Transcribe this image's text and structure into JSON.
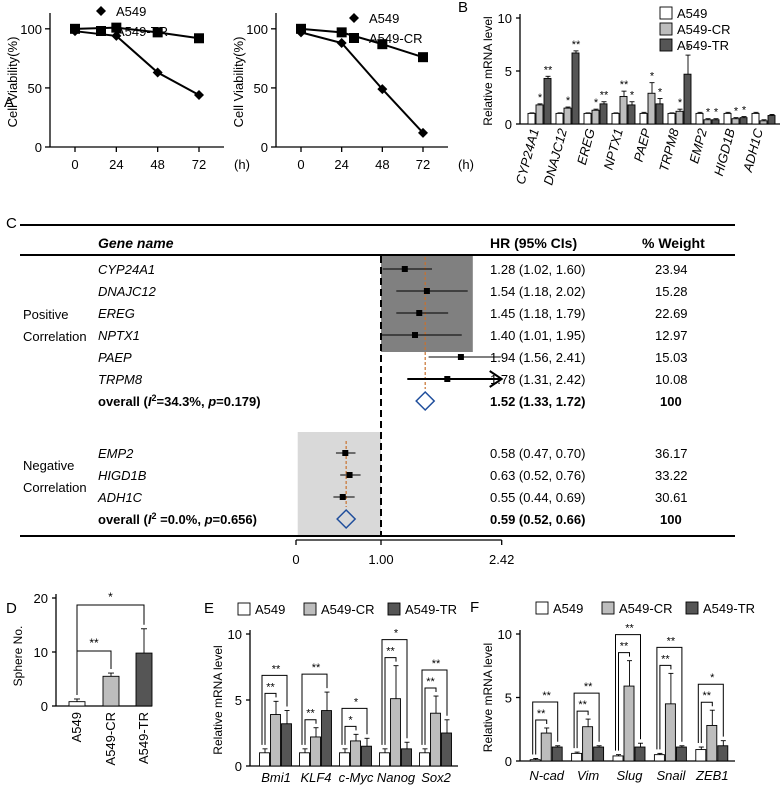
{
  "chart_data": [
    {
      "panel": "A",
      "type": "line",
      "ylabel": "Cell Viability(%)",
      "xunit": "(h)",
      "x": [
        0,
        24,
        48,
        72
      ],
      "xticks": [
        "0",
        "24",
        "48",
        "72"
      ],
      "yticks": [
        "0",
        "50",
        "100"
      ],
      "ylim": [
        0,
        110
      ],
      "series": [
        {
          "name": "A549",
          "marker": "diamond",
          "values": [
            98,
            94,
            63,
            44
          ]
        },
        {
          "name": "A549-TR",
          "marker": "square",
          "values": [
            100,
            101,
            97,
            92
          ]
        }
      ]
    },
    {
      "panel": "",
      "type": "line",
      "ylabel": "Cell Viability(%)",
      "xunit": "(h)",
      "x": [
        0,
        24,
        48,
        72
      ],
      "xticks": [
        "0",
        "24",
        "48",
        "72"
      ],
      "yticks": [
        "0",
        "50",
        "100"
      ],
      "ylim": [
        0,
        110
      ],
      "series": [
        {
          "name": "A549",
          "marker": "diamond",
          "values": [
            97,
            88,
            49,
            12
          ]
        },
        {
          "name": "A549-CR",
          "marker": "square",
          "values": [
            100,
            97,
            87,
            76
          ]
        }
      ]
    },
    {
      "panel": "B",
      "type": "bar",
      "ylabel": "Relative mRNA level",
      "yticks": [
        "0",
        "5",
        "10"
      ],
      "ylim": [
        0,
        10
      ],
      "legend": [
        "A549",
        "A549-CR",
        "A549-TR"
      ],
      "categories": [
        "CYP24A1",
        "DNAJC12",
        "EREG",
        "NPTX1",
        "PAEP",
        "TRPM8",
        "EMP2",
        "HIGD1B",
        "ADH1C"
      ],
      "series": [
        {
          "name": "A549",
          "values": [
            1,
            1,
            1,
            1,
            1,
            1,
            1,
            1,
            1
          ],
          "errors": [
            0.05,
            0.05,
            0.05,
            0.05,
            0.1,
            0.05,
            0.1,
            0.1,
            0.1
          ]
        },
        {
          "name": "A549-CR",
          "values": [
            1.8,
            1.5,
            1.3,
            2.6,
            2.9,
            1.2,
            0.4,
            0.5,
            0.3
          ],
          "errors": [
            0.1,
            0.1,
            0.1,
            0.5,
            1.0,
            0.2,
            0.1,
            0.1,
            0.1
          ]
        },
        {
          "name": "A549-TR",
          "values": [
            4.3,
            6.7,
            1.9,
            1.8,
            1.9,
            4.7,
            0.4,
            0.6,
            0.8
          ],
          "errors": [
            0.2,
            0.2,
            0.2,
            0.3,
            0.5,
            1.8,
            0.1,
            0.1,
            0.1
          ]
        }
      ],
      "sig": [
        [
          "*",
          "**"
        ],
        [
          "*",
          "**"
        ],
        [
          "*",
          "**"
        ],
        [
          "**",
          "*"
        ],
        [
          "*",
          "*"
        ],
        [
          "*",
          "*"
        ],
        [
          "*",
          "*"
        ],
        [
          "*",
          "*"
        ],
        [
          "",
          ""
        ]
      ]
    },
    {
      "panel": "C",
      "type": "table",
      "headers": [
        "Gene name",
        "HR (95% CIs)",
        "% Weight"
      ],
      "axis_ticks": [
        "0",
        "1.00",
        "2.42"
      ],
      "groups": [
        {
          "label_line1": "Positive",
          "label_line2": "Correlation",
          "rows": [
            {
              "gene": "CYP24A1",
              "hr": 1.28,
              "lo": 1.02,
              "hi": 1.6,
              "ci": "1.28 (1.02, 1.60)",
              "weight": "23.94"
            },
            {
              "gene": "DNAJC12",
              "hr": 1.54,
              "lo": 1.18,
              "hi": 2.02,
              "ci": "1.54 (1.18, 2.02)",
              "weight": "15.28"
            },
            {
              "gene": "EREG",
              "hr": 1.45,
              "lo": 1.18,
              "hi": 1.79,
              "ci": "1.45 (1.18, 1.79)",
              "weight": "22.69"
            },
            {
              "gene": "NPTX1",
              "hr": 1.4,
              "lo": 1.01,
              "hi": 1.95,
              "ci": "1.40 (1.01, 1.95)",
              "weight": "12.97"
            },
            {
              "gene": "PAEP",
              "hr": 1.94,
              "lo": 1.56,
              "hi": 2.41,
              "ci": "1.94 (1.56, 2.41)",
              "weight": "15.03"
            },
            {
              "gene": "TRPM8",
              "hr": 1.78,
              "lo": 1.31,
              "hi": 2.42,
              "ci": "1.78 (1.31, 2.42)",
              "weight": "10.08"
            }
          ],
          "overall": {
            "hr": 1.52,
            "lo": 1.33,
            "hi": 1.72,
            "prefix": "overall (",
            "i2": "=34.3%, ",
            "p": "=0.179)",
            "ci": "1.52 (1.33, 1.72)",
            "weight": "100"
          }
        },
        {
          "label_line1": "Negative",
          "label_line2": "Correlation",
          "rows": [
            {
              "gene": "EMP2",
              "hr": 0.58,
              "lo": 0.47,
              "hi": 0.7,
              "ci": "0.58 (0.47, 0.70)",
              "weight": "36.17"
            },
            {
              "gene": "HIGD1B",
              "hr": 0.63,
              "lo": 0.52,
              "hi": 0.76,
              "ci": "0.63 (0.52, 0.76)",
              "weight": "33.22"
            },
            {
              "gene": "ADH1C",
              "hr": 0.55,
              "lo": 0.44,
              "hi": 0.69,
              "ci": "0.55 (0.44, 0.69)",
              "weight": "30.61"
            }
          ],
          "overall": {
            "hr": 0.59,
            "lo": 0.52,
            "hi": 0.66,
            "prefix": "overall (",
            "i2": " =0.0%, ",
            "p": "=0.656)",
            "ci": "0.59 (0.52, 0.66)",
            "weight": "100"
          }
        }
      ]
    },
    {
      "panel": "D",
      "type": "bar",
      "ylabel": "Sphere No.",
      "yticks": [
        "0",
        "10",
        "20"
      ],
      "ylim": [
        0,
        20
      ],
      "categories": [
        "A549",
        "A549-CR",
        "A549-TR"
      ],
      "values": [
        0.8,
        5.5,
        9.8
      ],
      "errors": [
        0.5,
        0.6,
        4.5
      ],
      "sig": [
        {
          "a": 0,
          "b": 1,
          "label": "**"
        },
        {
          "a": 0,
          "b": 2,
          "label": "*"
        }
      ]
    },
    {
      "panel": "E",
      "type": "bar",
      "ylabel": "Relative mRNA level",
      "yticks": [
        "0",
        "5",
        "10"
      ],
      "ylim": [
        0,
        10
      ],
      "legend": [
        "A549",
        "A549-CR",
        "A549-TR"
      ],
      "categories": [
        "Bmi1",
        "KLF4",
        "c-Myc",
        "Nanog",
        "Sox2"
      ],
      "series": [
        {
          "name": "A549",
          "values": [
            1,
            1,
            1,
            1,
            1
          ],
          "errors": [
            0.3,
            0.3,
            0.3,
            0.3,
            0.3
          ]
        },
        {
          "name": "A549-CR",
          "values": [
            3.9,
            2.2,
            1.9,
            5.1,
            4.0
          ],
          "errors": [
            1.0,
            0.7,
            0.5,
            2.5,
            1.3
          ]
        },
        {
          "name": "A549-TR",
          "values": [
            3.2,
            4.2,
            1.5,
            1.3,
            2.5
          ],
          "errors": [
            1.0,
            1.4,
            0.6,
            0.5,
            1.0
          ]
        }
      ],
      "sig": [
        [
          "**",
          "**"
        ],
        [
          "**",
          "**"
        ],
        [
          "*",
          "*"
        ],
        [
          "**",
          "*"
        ],
        [
          "**",
          "**"
        ]
      ]
    },
    {
      "panel": "F",
      "type": "bar",
      "ylabel": "Relative mRNA level",
      "yticks": [
        "0",
        "5",
        "10"
      ],
      "ylim": [
        0,
        10
      ],
      "legend": [
        "A549",
        "A549-CR",
        "A549-TR"
      ],
      "categories": [
        "N-cad",
        "Vim",
        "Slug",
        "Snail",
        "ZEB1"
      ],
      "series": [
        {
          "name": "A549",
          "values": [
            0.1,
            0.6,
            0.4,
            0.5,
            0.9
          ],
          "errors": [
            0.1,
            0.1,
            0.1,
            0.1,
            0.2
          ]
        },
        {
          "name": "A549-CR",
          "values": [
            2.2,
            2.7,
            5.9,
            4.5,
            2.8
          ],
          "errors": [
            0.4,
            0.6,
            2.0,
            2.4,
            1.2
          ]
        },
        {
          "name": "A549-TR",
          "values": [
            1.1,
            1.1,
            1.1,
            1.1,
            1.2
          ],
          "errors": [
            0.1,
            0.1,
            0.3,
            0.1,
            0.4
          ]
        }
      ],
      "sig": [
        [
          "**",
          "**"
        ],
        [
          "**",
          "**"
        ],
        [
          "**",
          "**"
        ],
        [
          "**",
          "**"
        ],
        [
          "**",
          "*"
        ]
      ]
    }
  ],
  "colors": {
    "white_fill": "#ffffff",
    "light_gray": "#bdbdbd",
    "dark_gray": "#555555",
    "pos_shade": "#808080",
    "neg_shade": "#d9d9d9",
    "diamond": "#1f4e9c",
    "ref_line": "#c8722f"
  }
}
